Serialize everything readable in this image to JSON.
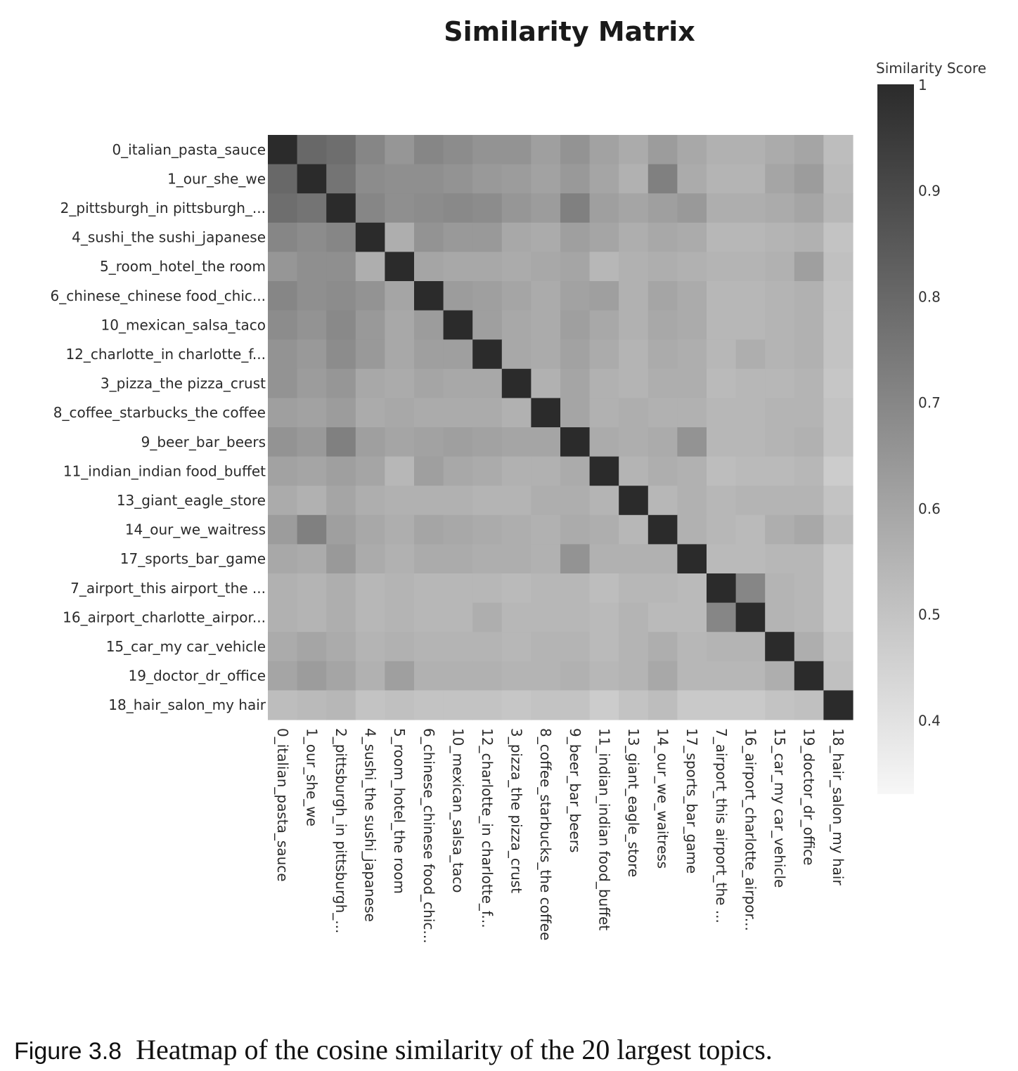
{
  "chart_data": {
    "type": "heatmap",
    "title": "Similarity Matrix",
    "colorbar": {
      "title": "Similarity Score",
      "range": [
        0.33,
        1
      ],
      "ticks": [
        1,
        0.9,
        0.8,
        0.7,
        0.6,
        0.5,
        0.4
      ],
      "tick_labels": [
        "1",
        "0.9",
        "0.8",
        "0.7",
        "0.6",
        "0.5",
        "0.4"
      ],
      "colors": [
        "#f7f7f7",
        "#2b2b2b"
      ]
    },
    "row_labels": [
      "0_italian_pasta_sauce",
      "1_our_she_we",
      "2_pittsburgh_in pittsburgh_...",
      "4_sushi_the sushi_japanese",
      "5_room_hotel_the room",
      "6_chinese_chinese food_chic...",
      "10_mexican_salsa_taco",
      "12_charlotte_in charlotte_f...",
      "3_pizza_the pizza_crust",
      "8_coffee_starbucks_the coffee",
      "9_beer_bar_beers",
      "11_indian_indian food_buffet",
      "13_giant_eagle_store",
      "14_our_we_waitress",
      "17_sports_bar_game",
      "7_airport_this airport_the ...",
      "16_airport_charlotte_airpor...",
      "15_car_my car_vehicle",
      "19_doctor_dr_office",
      "18_hair_salon_my hair"
    ],
    "col_labels": [
      "0_italian_pasta_sauce",
      "1_our_she_we",
      "2_pittsburgh_in pittsburgh_...",
      "4_sushi_the sushi_japanese",
      "5_room_hotel_the room",
      "6_chinese_chinese food_chic...",
      "10_mexican_salsa_taco",
      "12_charlotte_in charlotte_f...",
      "3_pizza_the pizza_crust",
      "8_coffee_starbucks_the coffee",
      "9_beer_bar_beers",
      "11_indian_indian food_buffet",
      "13_giant_eagle_store",
      "14_our_we_waitress",
      "17_sports_bar_game",
      "7_airport_this airport_the ...",
      "16_airport_charlotte_airpor...",
      "15_car_my car_vehicle",
      "19_doctor_dr_office",
      "18_hair_salon_my hair"
    ],
    "values": [
      [
        1.0,
        0.8,
        0.78,
        0.7,
        0.65,
        0.7,
        0.68,
        0.66,
        0.66,
        0.62,
        0.66,
        0.61,
        0.58,
        0.63,
        0.59,
        0.56,
        0.56,
        0.58,
        0.6,
        0.52
      ],
      [
        0.8,
        1.0,
        0.76,
        0.68,
        0.67,
        0.67,
        0.66,
        0.64,
        0.63,
        0.61,
        0.64,
        0.6,
        0.56,
        0.72,
        0.58,
        0.55,
        0.55,
        0.6,
        0.63,
        0.53
      ],
      [
        0.78,
        0.76,
        1.0,
        0.7,
        0.67,
        0.68,
        0.69,
        0.68,
        0.65,
        0.63,
        0.72,
        0.62,
        0.6,
        0.62,
        0.64,
        0.57,
        0.57,
        0.58,
        0.6,
        0.54
      ],
      [
        0.7,
        0.68,
        0.7,
        1.0,
        0.57,
        0.66,
        0.64,
        0.64,
        0.59,
        0.58,
        0.62,
        0.6,
        0.57,
        0.59,
        0.58,
        0.54,
        0.54,
        0.55,
        0.56,
        0.5
      ],
      [
        0.65,
        0.67,
        0.67,
        0.57,
        1.0,
        0.6,
        0.59,
        0.59,
        0.58,
        0.59,
        0.6,
        0.54,
        0.56,
        0.57,
        0.56,
        0.55,
        0.55,
        0.56,
        0.62,
        0.51
      ],
      [
        0.7,
        0.67,
        0.68,
        0.66,
        0.6,
        1.0,
        0.63,
        0.62,
        0.6,
        0.58,
        0.61,
        0.62,
        0.56,
        0.6,
        0.58,
        0.54,
        0.54,
        0.55,
        0.56,
        0.5
      ],
      [
        0.68,
        0.66,
        0.69,
        0.64,
        0.59,
        0.63,
        1.0,
        0.62,
        0.59,
        0.58,
        0.62,
        0.59,
        0.56,
        0.59,
        0.58,
        0.54,
        0.54,
        0.55,
        0.56,
        0.5
      ],
      [
        0.66,
        0.64,
        0.68,
        0.64,
        0.59,
        0.62,
        0.62,
        1.0,
        0.59,
        0.58,
        0.61,
        0.58,
        0.55,
        0.58,
        0.57,
        0.54,
        0.57,
        0.55,
        0.56,
        0.5
      ],
      [
        0.66,
        0.63,
        0.65,
        0.59,
        0.58,
        0.6,
        0.59,
        0.59,
        1.0,
        0.56,
        0.6,
        0.56,
        0.55,
        0.57,
        0.57,
        0.53,
        0.54,
        0.54,
        0.55,
        0.49
      ],
      [
        0.62,
        0.61,
        0.63,
        0.58,
        0.59,
        0.58,
        0.58,
        0.58,
        0.56,
        1.0,
        0.6,
        0.56,
        0.57,
        0.56,
        0.56,
        0.54,
        0.54,
        0.55,
        0.55,
        0.5
      ],
      [
        0.66,
        0.64,
        0.72,
        0.62,
        0.6,
        0.61,
        0.62,
        0.61,
        0.6,
        0.6,
        1.0,
        0.58,
        0.57,
        0.58,
        0.66,
        0.54,
        0.54,
        0.55,
        0.56,
        0.5
      ],
      [
        0.61,
        0.6,
        0.62,
        0.6,
        0.54,
        0.62,
        0.59,
        0.58,
        0.56,
        0.56,
        0.58,
        1.0,
        0.55,
        0.57,
        0.56,
        0.52,
        0.53,
        0.53,
        0.54,
        0.47
      ],
      [
        0.58,
        0.56,
        0.6,
        0.57,
        0.56,
        0.56,
        0.56,
        0.55,
        0.55,
        0.57,
        0.57,
        0.55,
        1.0,
        0.54,
        0.56,
        0.54,
        0.55,
        0.55,
        0.55,
        0.5
      ],
      [
        0.63,
        0.72,
        0.62,
        0.59,
        0.57,
        0.6,
        0.59,
        0.58,
        0.57,
        0.56,
        0.58,
        0.57,
        0.54,
        1.0,
        0.56,
        0.54,
        0.53,
        0.57,
        0.59,
        0.52
      ],
      [
        0.59,
        0.58,
        0.64,
        0.58,
        0.56,
        0.58,
        0.58,
        0.57,
        0.57,
        0.56,
        0.66,
        0.56,
        0.56,
        0.56,
        1.0,
        0.53,
        0.53,
        0.54,
        0.54,
        0.48
      ],
      [
        0.56,
        0.55,
        0.57,
        0.54,
        0.55,
        0.54,
        0.54,
        0.54,
        0.53,
        0.54,
        0.54,
        0.52,
        0.54,
        0.54,
        0.53,
        1.0,
        0.7,
        0.55,
        0.54,
        0.48
      ],
      [
        0.56,
        0.55,
        0.57,
        0.54,
        0.55,
        0.54,
        0.54,
        0.57,
        0.54,
        0.54,
        0.54,
        0.53,
        0.55,
        0.53,
        0.53,
        0.7,
        1.0,
        0.55,
        0.54,
        0.48
      ],
      [
        0.58,
        0.6,
        0.58,
        0.55,
        0.56,
        0.55,
        0.55,
        0.55,
        0.54,
        0.55,
        0.55,
        0.53,
        0.55,
        0.57,
        0.54,
        0.55,
        0.55,
        1.0,
        0.57,
        0.5
      ],
      [
        0.6,
        0.63,
        0.6,
        0.56,
        0.62,
        0.56,
        0.56,
        0.56,
        0.55,
        0.55,
        0.56,
        0.54,
        0.55,
        0.59,
        0.54,
        0.54,
        0.54,
        0.57,
        1.0,
        0.51
      ],
      [
        0.52,
        0.53,
        0.54,
        0.5,
        0.51,
        0.5,
        0.5,
        0.5,
        0.49,
        0.5,
        0.5,
        0.47,
        0.5,
        0.52,
        0.48,
        0.48,
        0.48,
        0.5,
        0.51,
        1.0
      ]
    ]
  },
  "caption": {
    "number": "Figure 3.8",
    "text": "Heatmap of the cosine similarity of the 20 largest topics."
  }
}
